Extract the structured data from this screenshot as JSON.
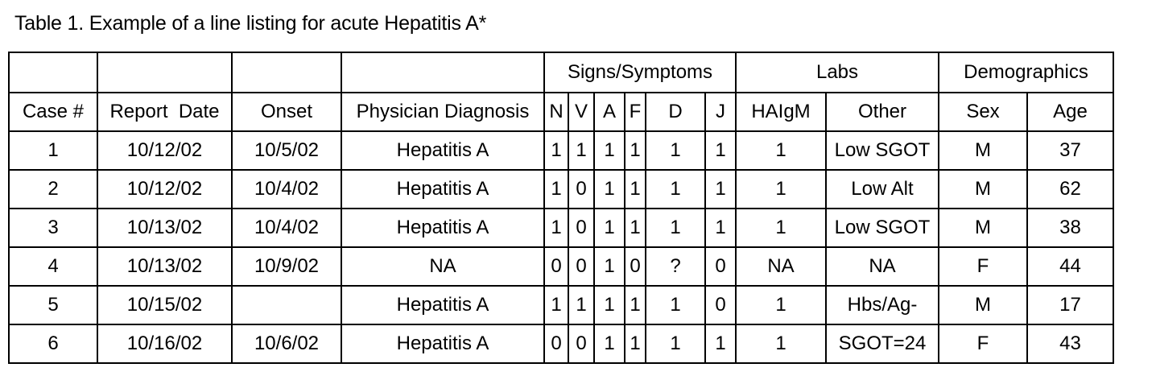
{
  "caption": "Table 1.  Example of a line listing for acute Hepatitis A*",
  "group_headers": {
    "signs_symptoms": "Signs/Symptoms",
    "labs": "Labs",
    "demographics": "Demographics"
  },
  "columns": [
    "Case #",
    "Report  Date",
    "Onset",
    "Physician Diagnosis",
    "N",
    "V",
    "A",
    "F",
    "D",
    "J",
    "HAIgM",
    "Other",
    "Sex",
    "Age"
  ],
  "rows": [
    [
      "1",
      "10/12/02",
      "10/5/02",
      "Hepatitis A",
      "1",
      "1",
      "1",
      "1",
      "1",
      "1",
      "1",
      "Low SGOT",
      "M",
      "37"
    ],
    [
      "2",
      "10/12/02",
      "10/4/02",
      "Hepatitis A",
      "1",
      "0",
      "1",
      "1",
      "1",
      "1",
      "1",
      "Low Alt",
      "M",
      "62"
    ],
    [
      "3",
      "10/13/02",
      "10/4/02",
      "Hepatitis A",
      "1",
      "0",
      "1",
      "1",
      "1",
      "1",
      "1",
      "Low SGOT",
      "M",
      "38"
    ],
    [
      "4",
      "10/13/02",
      "10/9/02",
      "NA",
      "0",
      "0",
      "1",
      "0",
      "?",
      "0",
      "NA",
      "NA",
      "F",
      "44"
    ],
    [
      "5",
      "10/15/02",
      "",
      "Hepatitis A",
      "1",
      "1",
      "1",
      "1",
      "1",
      "0",
      "1",
      "Hbs/Ag-",
      "M",
      "17"
    ],
    [
      "6",
      "10/16/02",
      "10/6/02",
      "Hepatitis A",
      "0",
      "0",
      "1",
      "1",
      "1",
      "1",
      "1",
      "SGOT=24",
      "F",
      "43"
    ]
  ]
}
